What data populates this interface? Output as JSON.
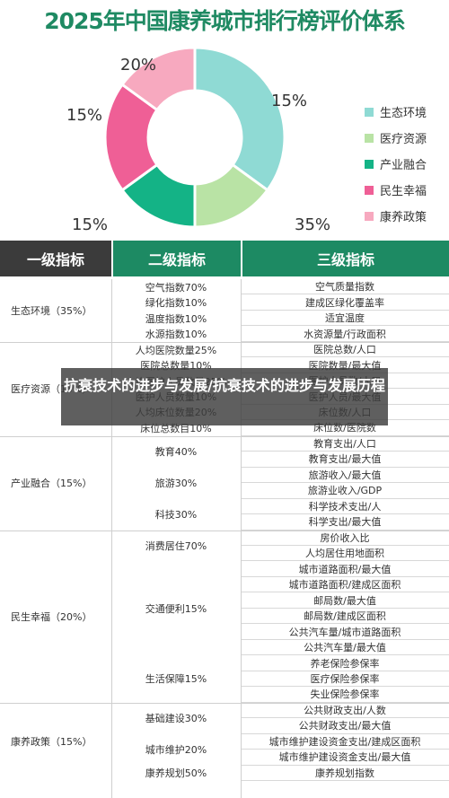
{
  "title": "2025年中国康养城市排行榜评价体系",
  "chart_data": {
    "type": "pie",
    "title": "2025年中国康养城市排行榜评价体系",
    "categories": [
      "生态环境",
      "医疗资源",
      "产业融合",
      "民生幸福",
      "康养政策"
    ],
    "values": [
      35,
      15,
      15,
      20,
      15
    ],
    "slice_labels": [
      "35%",
      "15%",
      "15%",
      "20%",
      "15%"
    ],
    "colors": [
      "#8fdad4",
      "#b9e3a5",
      "#14b386",
      "#ef5f96",
      "#f7a9bf"
    ],
    "legend_position": "right",
    "donut": true
  },
  "headers": [
    "一级指标",
    "二级指标",
    "三级指标"
  ],
  "overlay_text": "抗衰技术的进步与发展/抗衰技术的进步与发展历程",
  "table": [
    {
      "name": "生态环境（35%）",
      "groups": [
        {
          "name": "空气指数70%",
          "items": [
            "空气质量指数"
          ]
        },
        {
          "name": "绿化指数10%",
          "items": [
            "建成区绿化覆盖率"
          ]
        },
        {
          "name": "温度指数10%",
          "items": [
            "适宜温度"
          ]
        },
        {
          "name": "水源指数10%",
          "items": [
            "水资源量/行政面积"
          ]
        }
      ]
    },
    {
      "name": "医疗资源（15%）",
      "groups": [
        {
          "name": "人均医院数量25%",
          "items": [
            "医院总数/人口"
          ]
        },
        {
          "name": "医院总数量10%",
          "items": [
            "医院数量/最大值"
          ]
        },
        {
          "name": "人均医护人员数量25%",
          "items": [
            "医护人员数/人口"
          ]
        },
        {
          "name": "医护人员数量10%",
          "items": [
            "医护人员/最大值"
          ]
        },
        {
          "name": "人均床位数量20%",
          "items": [
            "床位数/人口"
          ]
        },
        {
          "name": "床位总数目10%",
          "items": [
            "床位数/医院数"
          ]
        }
      ]
    },
    {
      "name": "产业融合（15%）",
      "groups": [
        {
          "name": "教育40%",
          "items": [
            "教育支出/人口",
            "教育支出/最大值"
          ]
        },
        {
          "name": "旅游30%",
          "items": [
            "旅游收入/最大值",
            "旅游业收入/GDP"
          ]
        },
        {
          "name": "科技30%",
          "items": [
            "科学技术支出/人",
            "科学支出/最大值"
          ]
        }
      ]
    },
    {
      "name": "民生幸福（20%）",
      "groups": [
        {
          "name": "消费居住70%",
          "items": [
            "房价收入比",
            "人均居住用地面积"
          ]
        },
        {
          "name": "交通便利15%",
          "items": [
            "城市道路面积/最大值",
            "城市道路面积/建成区面积",
            "邮局数/最大值",
            "邮局数/建成区面积",
            "公共汽车量/城市道路面积",
            "公共汽车量/最大值"
          ]
        },
        {
          "name": "生活保障15%",
          "items": [
            "养老保险参保率",
            "医疗保险参保率",
            "失业保险参保率"
          ]
        }
      ]
    },
    {
      "name": "康养政策（15%）",
      "groups": [
        {
          "name": "基础建设30%",
          "items": [
            "公共财政支出/人数",
            "公共财政支出/最大值"
          ]
        },
        {
          "name": "城市维护20%",
          "items": [
            "城市维护建设资金支出/建成区面积",
            "城市维护建设资金支出/最大值"
          ]
        },
        {
          "name": "康养规划50%",
          "items": [
            "康养规划指数"
          ]
        }
      ]
    }
  ]
}
